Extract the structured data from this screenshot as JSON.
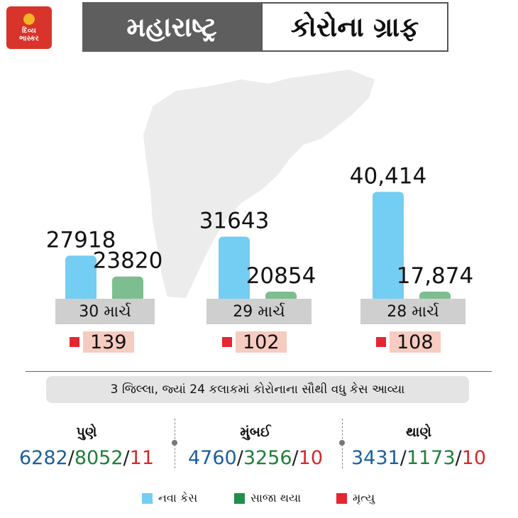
{
  "header": {
    "logo_text": "દિવ્ય\nભાસ્કર",
    "title_left": "મહારાષ્ટ્ર",
    "title_right": "કોરોના ગ્રાફ"
  },
  "colors": {
    "new_cases": "#74cdf2",
    "recovered": "#7dbd8f",
    "deaths": "#e52530",
    "death_bg": "#f6cbc0",
    "date_bg": "#cfcfcf",
    "map": "#ececec"
  },
  "chart_data": {
    "type": "bar",
    "categories": [
      "30 માર્ચ",
      "29 માર્ચ",
      "28 માર્ચ"
    ],
    "series": [
      {
        "name": "નવા કેસ",
        "values": [
          27918,
          31643,
          40414
        ],
        "labels": [
          "27918",
          "31643",
          "40,414"
        ]
      },
      {
        "name": "સાજા થયા",
        "values": [
          23820,
          20854,
          17874
        ],
        "labels": [
          "23820",
          "20854",
          "17,874"
        ]
      },
      {
        "name": "મૃત્યુ",
        "values": [
          139,
          102,
          108
        ],
        "labels": [
          "139",
          "102",
          "108"
        ]
      }
    ]
  },
  "districts_title": "3 જિલ્લા, જ્યાં 24 કલાકમાં કોરોનાના સૌથી વધુ કેસ આવ્યા",
  "districts": [
    {
      "name": "પુણે",
      "new": "6282",
      "recovered": "8052",
      "deaths": "11"
    },
    {
      "name": "મુંબઈ",
      "new": "4760",
      "recovered": "3256",
      "deaths": "10"
    },
    {
      "name": "થાણે",
      "new": "3431",
      "recovered": "1173",
      "deaths": "10"
    }
  ],
  "stat_separator": "/",
  "legend": [
    "નવા કેસ",
    "સાજા થયા",
    "મૃત્યુ"
  ]
}
